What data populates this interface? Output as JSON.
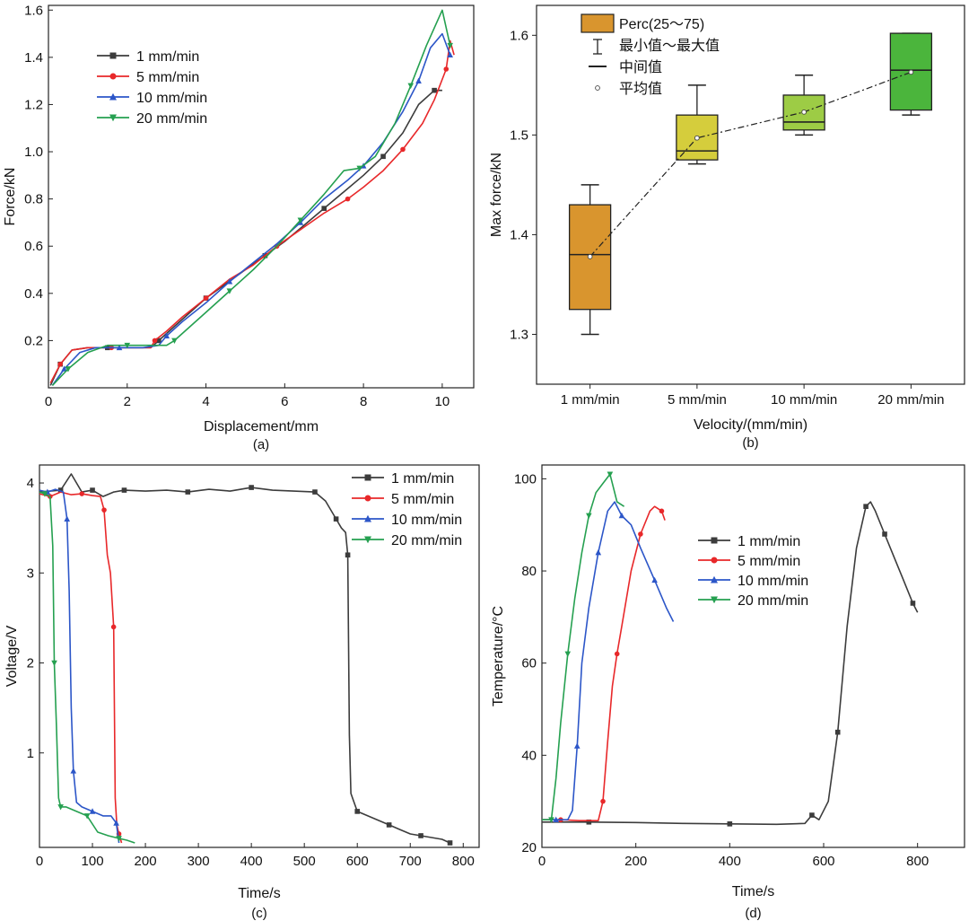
{
  "chart_data": [
    {
      "id": "a",
      "type": "line",
      "panel_label": "(a)",
      "xlabel": "Displacement/mm",
      "ylabel": "Force/kN",
      "xlim": [
        0,
        10.8
      ],
      "ylim": [
        0,
        1.62
      ],
      "xticks": [
        0,
        2,
        4,
        6,
        8,
        10
      ],
      "xtick_labels": [
        "0",
        "2",
        "4",
        "6",
        "8",
        "10"
      ],
      "yticks": [
        0.2,
        0.4,
        0.6,
        0.8,
        1.0,
        1.2,
        1.4,
        1.6
      ],
      "ytick_labels": [
        "0.2",
        "0.4",
        "0.6",
        "0.8",
        "1.0",
        "1.2",
        "1.4",
        "1.6"
      ],
      "legend_position": "top-left",
      "series": [
        {
          "name": "1 mm/min",
          "color": "#3c3c3c",
          "marker": "square",
          "x": [
            0.05,
            0.3,
            0.6,
            1.0,
            1.5,
            2.0,
            2.6,
            2.8,
            3.2,
            3.6,
            4.0,
            4.5,
            5.0,
            5.5,
            6.0,
            6.5,
            7.0,
            7.5,
            8.0,
            8.5,
            9.0,
            9.4,
            9.8,
            10.0
          ],
          "y": [
            0.01,
            0.1,
            0.16,
            0.17,
            0.17,
            0.17,
            0.17,
            0.2,
            0.26,
            0.32,
            0.38,
            0.44,
            0.5,
            0.56,
            0.62,
            0.69,
            0.76,
            0.83,
            0.9,
            0.98,
            1.08,
            1.2,
            1.26,
            1.26
          ]
        },
        {
          "name": "5 mm/min",
          "color": "#e8282a",
          "marker": "circle",
          "x": [
            0.05,
            0.3,
            0.6,
            1.0,
            1.6,
            2.2,
            2.6,
            2.7,
            3.0,
            3.4,
            4.0,
            4.6,
            5.2,
            5.8,
            6.4,
            7.0,
            7.6,
            8.0,
            8.5,
            9.0,
            9.5,
            9.8,
            10.1,
            10.2,
            10.3
          ],
          "y": [
            0.02,
            0.1,
            0.16,
            0.17,
            0.17,
            0.17,
            0.17,
            0.2,
            0.24,
            0.3,
            0.38,
            0.46,
            0.52,
            0.6,
            0.67,
            0.74,
            0.8,
            0.85,
            0.92,
            1.01,
            1.12,
            1.22,
            1.35,
            1.47,
            1.41
          ]
        },
        {
          "name": "10 mm/min",
          "color": "#2c56c8",
          "marker": "triangle-up",
          "x": [
            0.1,
            0.4,
            0.8,
            1.2,
            1.8,
            2.4,
            2.8,
            3.0,
            3.4,
            4.0,
            4.6,
            5.2,
            5.8,
            6.4,
            7.0,
            7.6,
            8.0,
            8.5,
            9.0,
            9.4,
            9.7,
            10.0,
            10.2
          ],
          "y": [
            0.01,
            0.08,
            0.15,
            0.17,
            0.17,
            0.17,
            0.18,
            0.22,
            0.28,
            0.36,
            0.45,
            0.53,
            0.61,
            0.7,
            0.8,
            0.88,
            0.94,
            1.04,
            1.17,
            1.3,
            1.44,
            1.5,
            1.41
          ]
        },
        {
          "name": "20 mm/min",
          "color": "#25a050",
          "marker": "triangle-down",
          "x": [
            0.1,
            0.5,
            1.0,
            1.5,
            2.0,
            2.5,
            3.0,
            3.2,
            3.6,
            4.0,
            4.6,
            5.2,
            5.8,
            6.4,
            7.0,
            7.5,
            7.9,
            8.3,
            8.8,
            9.2,
            9.6,
            10.0,
            10.2
          ],
          "y": [
            0.01,
            0.08,
            0.15,
            0.18,
            0.18,
            0.18,
            0.18,
            0.2,
            0.26,
            0.32,
            0.41,
            0.5,
            0.6,
            0.71,
            0.82,
            0.92,
            0.93,
            0.98,
            1.12,
            1.28,
            1.45,
            1.6,
            1.45
          ]
        }
      ]
    },
    {
      "id": "b",
      "type": "box",
      "panel_label": "(b)",
      "xlabel": "Velocity/(mm/min)",
      "ylabel": "Max force/kN",
      "ylim": [
        1.25,
        1.63
      ],
      "yticks": [
        1.3,
        1.4,
        1.5,
        1.6
      ],
      "ytick_labels": [
        "1.3",
        "1.4",
        "1.5",
        "1.6"
      ],
      "categories": [
        "1 mm/min",
        "5 mm/min",
        "10 mm/min",
        "20 mm/min"
      ],
      "boxes": [
        {
          "min": 1.3,
          "q1": 1.325,
          "median": 1.38,
          "q3": 1.43,
          "max": 1.45,
          "mean": 1.378,
          "color": "#d9952e"
        },
        {
          "min": 1.471,
          "q1": 1.475,
          "median": 1.484,
          "q3": 1.52,
          "max": 1.55,
          "mean": 1.497,
          "color": "#d5cd3c"
        },
        {
          "min": 1.5,
          "q1": 1.505,
          "median": 1.513,
          "q3": 1.54,
          "max": 1.56,
          "mean": 1.523,
          "color": "#9dcc45"
        },
        {
          "min": 1.52,
          "q1": 1.525,
          "median": 1.565,
          "q3": 1.602,
          "max": 1.602,
          "mean": 1.563,
          "color": "#4bb53c"
        }
      ],
      "legend": [
        "Perc(25～75)",
        "最小值～最大值",
        "中间值",
        "平均值"
      ],
      "legend_position": "top-left"
    },
    {
      "id": "c",
      "type": "line",
      "panel_label": "(c)",
      "xlabel": "Time/s",
      "ylabel": "Voltage/V",
      "xlim": [
        0,
        830
      ],
      "ylim": [
        -0.05,
        4.2
      ],
      "xticks": [
        0,
        100,
        200,
        300,
        400,
        500,
        600,
        700,
        800
      ],
      "xtick_labels": [
        "0",
        "100",
        "200",
        "300",
        "400",
        "500",
        "600",
        "700",
        "800"
      ],
      "yticks": [
        1,
        2,
        3,
        4
      ],
      "ytick_labels": [
        "1",
        "2",
        "3",
        "4"
      ],
      "legend_position": "top-right",
      "series": [
        {
          "name": "1 mm/min",
          "color": "#3c3c3c",
          "marker": "square",
          "x": [
            0,
            40,
            60,
            80,
            100,
            120,
            140,
            160,
            200,
            240,
            280,
            320,
            360,
            400,
            440,
            480,
            520,
            540,
            550,
            560,
            570,
            578,
            582,
            585,
            588,
            600,
            620,
            640,
            660,
            680,
            700,
            720,
            740,
            760,
            775
          ],
          "y": [
            3.9,
            3.92,
            4.1,
            3.9,
            3.92,
            3.85,
            3.9,
            3.92,
            3.91,
            3.92,
            3.9,
            3.93,
            3.91,
            3.95,
            3.92,
            3.91,
            3.9,
            3.8,
            3.7,
            3.6,
            3.5,
            3.45,
            3.2,
            1.2,
            0.55,
            0.35,
            0.3,
            0.25,
            0.2,
            0.15,
            0.1,
            0.08,
            0.06,
            0.04,
            0.0
          ]
        },
        {
          "name": "5 mm/min",
          "color": "#e8282a",
          "marker": "circle",
          "x": [
            0,
            20,
            40,
            60,
            80,
            100,
            115,
            122,
            128,
            134,
            140,
            143,
            146,
            150,
            155
          ],
          "y": [
            3.88,
            3.85,
            3.9,
            3.87,
            3.88,
            3.86,
            3.85,
            3.7,
            3.2,
            3.0,
            2.4,
            0.5,
            0.2,
            0.1,
            0.0
          ]
        },
        {
          "name": "10 mm/min",
          "color": "#2c56c8",
          "marker": "triangle-up",
          "x": [
            0,
            15,
            30,
            45,
            52,
            56,
            60,
            64,
            70,
            80,
            100,
            120,
            135,
            145,
            150
          ],
          "y": [
            3.92,
            3.9,
            3.93,
            3.9,
            3.6,
            2.8,
            1.5,
            0.8,
            0.45,
            0.4,
            0.35,
            0.3,
            0.3,
            0.22,
            0.0
          ]
        },
        {
          "name": "20 mm/min",
          "color": "#25a050",
          "marker": "triangle-down",
          "x": [
            0,
            10,
            20,
            25,
            28,
            32,
            36,
            40,
            50,
            70,
            90,
            110,
            130,
            150,
            165,
            180
          ],
          "y": [
            3.9,
            3.88,
            3.85,
            3.3,
            2.0,
            1.3,
            0.5,
            0.4,
            0.4,
            0.35,
            0.3,
            0.12,
            0.08,
            0.05,
            0.03,
            0.0
          ]
        }
      ]
    },
    {
      "id": "d",
      "type": "line",
      "panel_label": "(d)",
      "xlabel": "Time/s",
      "ylabel": "Temperature/°C",
      "xlim": [
        0,
        900
      ],
      "ylim": [
        20,
        103
      ],
      "xticks": [
        0,
        200,
        400,
        600,
        800
      ],
      "xtick_labels": [
        "0",
        "200",
        "400",
        "600",
        "800"
      ],
      "yticks": [
        20,
        40,
        60,
        80,
        100
      ],
      "ytick_labels": [
        "20",
        "40",
        "60",
        "80",
        "100"
      ],
      "legend_position": "center-right",
      "series": [
        {
          "name": "1 mm/min",
          "color": "#3c3c3c",
          "marker": "square",
          "x": [
            0,
            100,
            200,
            300,
            400,
            500,
            560,
            575,
            590,
            610,
            630,
            650,
            670,
            690,
            700,
            710,
            730,
            750,
            770,
            790,
            800
          ],
          "y": [
            25.5,
            25.5,
            25.4,
            25.2,
            25.1,
            25.0,
            25.2,
            27,
            26,
            30,
            45,
            68,
            85,
            94,
            95,
            93,
            88,
            83,
            78,
            73,
            71
          ]
        },
        {
          "name": "5 mm/min",
          "color": "#e8282a",
          "marker": "circle",
          "x": [
            0,
            40,
            80,
            120,
            130,
            140,
            150,
            160,
            170,
            190,
            210,
            230,
            240,
            255,
            262
          ],
          "y": [
            26,
            26,
            25.8,
            25.8,
            30,
            43,
            55,
            62,
            68,
            80,
            88,
            93,
            94,
            93,
            91
          ]
        },
        {
          "name": "10 mm/min",
          "color": "#2c56c8",
          "marker": "triangle-up",
          "x": [
            0,
            30,
            55,
            65,
            75,
            85,
            100,
            120,
            140,
            155,
            170,
            190,
            210,
            240,
            265,
            280
          ],
          "y": [
            26,
            26,
            26,
            28,
            42,
            60,
            72,
            84,
            93,
            95,
            92,
            90,
            85,
            78,
            72,
            69
          ]
        },
        {
          "name": "20 mm/min",
          "color": "#25a050",
          "marker": "triangle-down",
          "x": [
            0,
            20,
            30,
            40,
            55,
            70,
            85,
            100,
            115,
            130,
            145,
            160,
            175
          ],
          "y": [
            26,
            26,
            35,
            47,
            62,
            74,
            84,
            92,
            97,
            99,
            101,
            95,
            94
          ]
        }
      ]
    }
  ]
}
